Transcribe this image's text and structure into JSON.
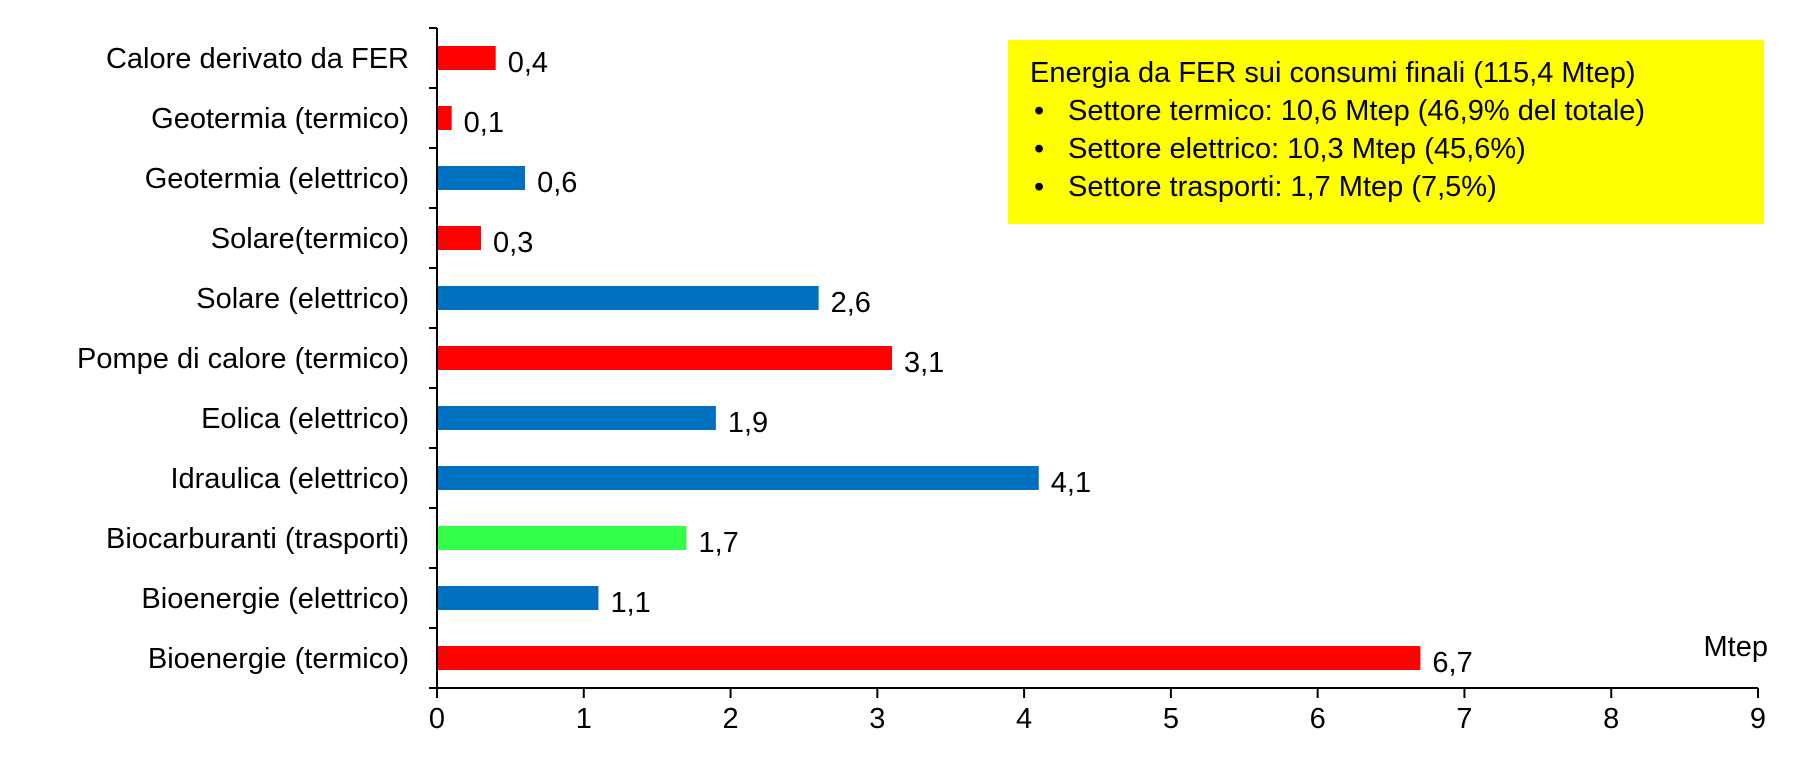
{
  "chart_data": {
    "type": "bar",
    "orientation": "horizontal",
    "categories": [
      "Calore derivato da FER",
      "Geotermia (termico)",
      "Geotermia (elettrico)",
      "Solare(termico)",
      "Solare (elettrico)",
      "Pompe di calore (termico)",
      "Eolica (elettrico)",
      "Idraulica (elettrico)",
      "Biocarburanti (trasporti)",
      "Bioenergie (elettrico)",
      "Bioenergie (termico)"
    ],
    "values": [
      0.4,
      0.1,
      0.6,
      0.3,
      2.6,
      3.1,
      1.9,
      4.1,
      1.7,
      1.1,
      6.7
    ],
    "value_labels": [
      "0,4",
      "0,1",
      "0,6",
      "0,3",
      "2,6",
      "3,1",
      "1,9",
      "4,1",
      "1,7",
      "1,1",
      "6,7"
    ],
    "sectors": [
      "termico",
      "termico",
      "elettrico",
      "termico",
      "elettrico",
      "termico",
      "elettrico",
      "elettrico",
      "trasporti",
      "elettrico",
      "termico"
    ],
    "sector_colors": {
      "termico": "#ff0000",
      "elettrico": "#0070c0",
      "trasporti": "#33ff4a"
    },
    "xlim": [
      0,
      9
    ],
    "xticks": [
      "0",
      "1",
      "2",
      "3",
      "4",
      "5",
      "6",
      "7",
      "8",
      "9"
    ],
    "unit": "Mtep",
    "grid": false,
    "legend": "none"
  },
  "info_box": {
    "background": "#ffff00",
    "title": "Energia da FER sui consumi finali (115,4 Mtep)",
    "items": [
      "Settore termico: 10,6 Mtep (46,9% del totale)",
      "Settore elettrico: 10,3 Mtep (45,6%)",
      "Settore trasporti: 1,7 Mtep (7,5%)"
    ]
  }
}
